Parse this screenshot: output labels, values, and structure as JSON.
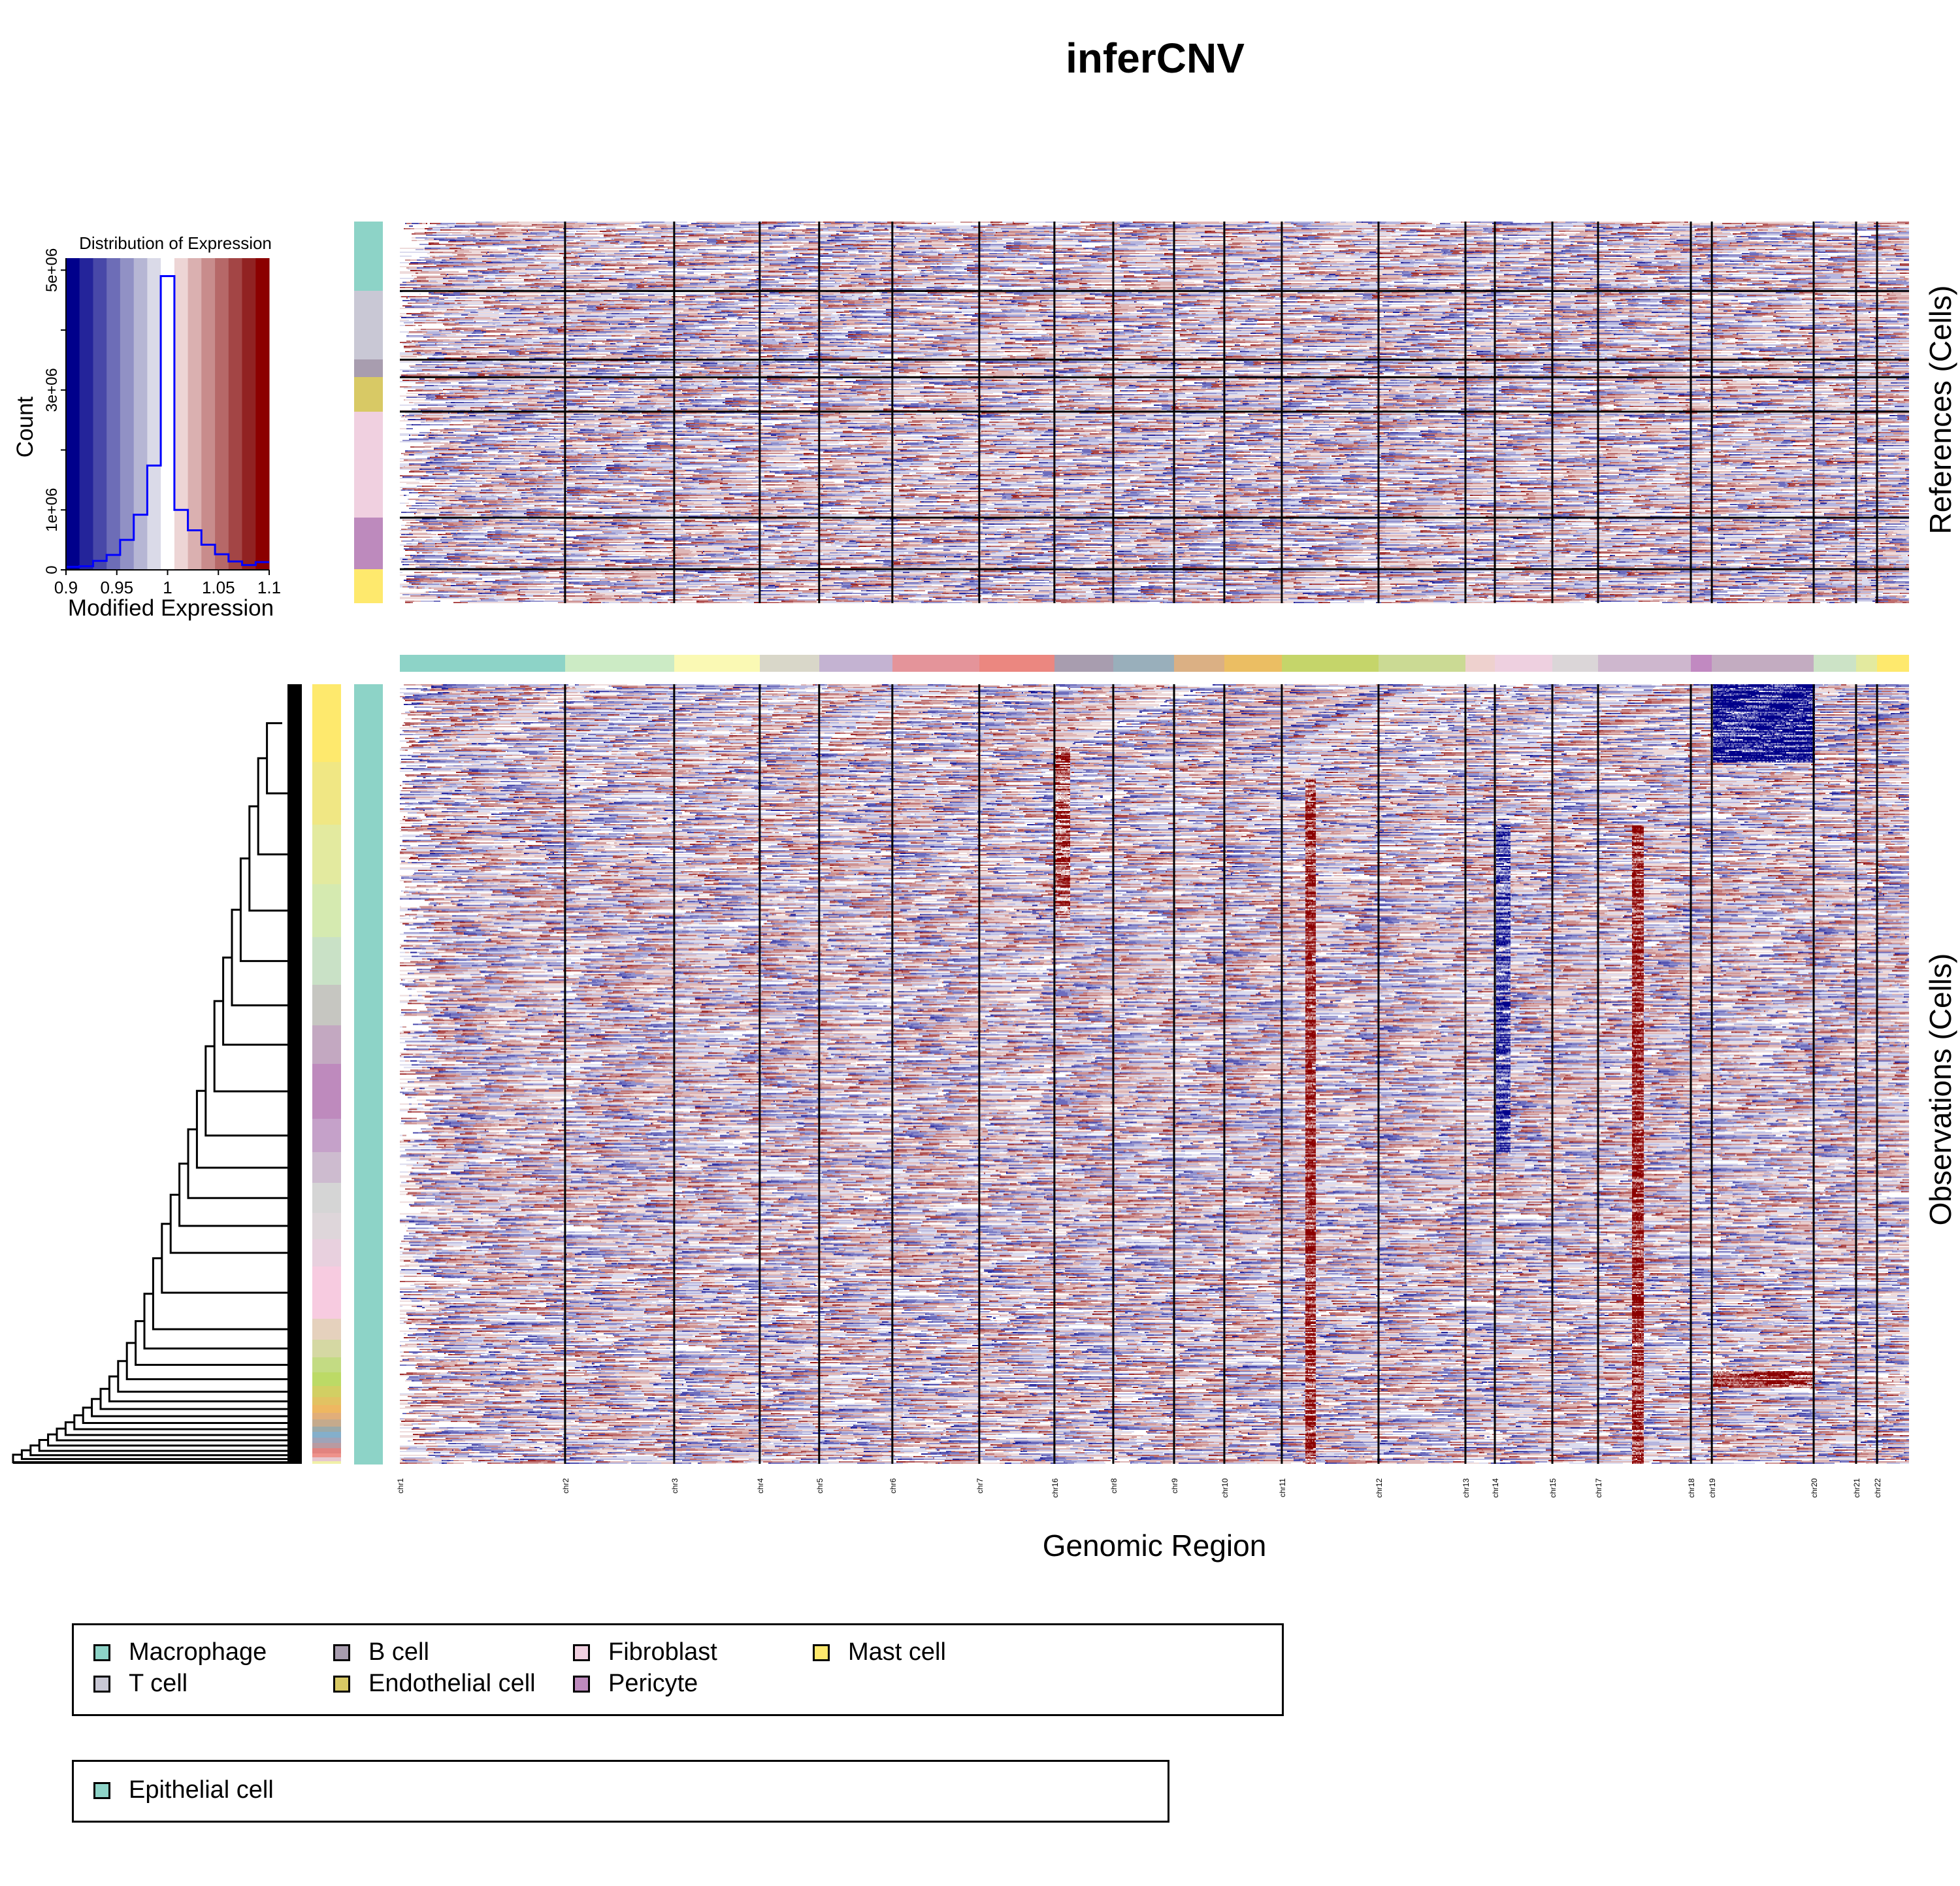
{
  "title": "inferCNV",
  "chart_data": {
    "type": "heatmap",
    "title": "inferCNV",
    "xlabel": "Genomic Region",
    "references_label": "References (Cells)",
    "observations_label": "Observations (Cells)",
    "color_scale": {
      "low": "#00008B",
      "mid": "#FFFFFF",
      "high": "#8B0000",
      "range": [
        0.9,
        1.1
      ]
    },
    "chromosomes": [
      {
        "name": "chr1",
        "frac": 0.1095,
        "color": "#8DD3C7"
      },
      {
        "name": "chr2",
        "frac": 0.0723,
        "color": "#CCEBC5"
      },
      {
        "name": "chr3",
        "frac": 0.0567,
        "color": "#FAF9B4"
      },
      {
        "name": "chr4",
        "frac": 0.0394,
        "color": "#D9D7C9"
      },
      {
        "name": "chr5",
        "frac": 0.0485,
        "color": "#C4B3D2"
      },
      {
        "name": "chr6",
        "frac": 0.0576,
        "color": "#E4949A"
      },
      {
        "name": "chr7",
        "frac": 0.0498,
        "color": "#EB8780"
      },
      {
        "name": "chr16",
        "frac": 0.039,
        "color": "#A89DAF"
      },
      {
        "name": "chr8",
        "frac": 0.0403,
        "color": "#99AFBB"
      },
      {
        "name": "chr9",
        "frac": 0.0333,
        "color": "#DBB084"
      },
      {
        "name": "chr10",
        "frac": 0.0381,
        "color": "#EBBE63"
      },
      {
        "name": "chr11",
        "frac": 0.0641,
        "color": "#C5D56A"
      },
      {
        "name": "chr12",
        "frac": 0.0576,
        "color": "#CBDA94"
      },
      {
        "name": "chr13",
        "frac": 0.0195,
        "color": "#EED1CE"
      },
      {
        "name": "chr14",
        "frac": 0.0381,
        "color": "#EED0E0"
      },
      {
        "name": "chr15",
        "frac": 0.0303,
        "color": "#DBD6D8"
      },
      {
        "name": "chr17",
        "frac": 0.0615,
        "color": "#CEB7CE"
      },
      {
        "name": "chr18",
        "frac": 0.0139,
        "color": "#C189C1"
      },
      {
        "name": "chr19",
        "frac": 0.0675,
        "color": "#C3ACC1"
      },
      {
        "name": "chr20",
        "frac": 0.0281,
        "color": "#CCE3C6"
      },
      {
        "name": "chr21",
        "frac": 0.0139,
        "color": "#E3EA9F"
      },
      {
        "name": "chr22",
        "frac": 0.0212,
        "color": "#FEE96D"
      }
    ],
    "reference_groups": [
      {
        "name": "Macrophage",
        "frac": 0.182,
        "color": "#8DD3C7"
      },
      {
        "name": "T cell",
        "frac": 0.18,
        "color": "#C9C8D5"
      },
      {
        "name": "B cell",
        "frac": 0.046,
        "color": "#A89DAF"
      },
      {
        "name": "Endothelial cell",
        "frac": 0.09,
        "color": "#D8C965"
      },
      {
        "name": "Fibroblast",
        "frac": 0.278,
        "color": "#F0D0E0"
      },
      {
        "name": "Pericyte",
        "frac": 0.135,
        "color": "#BD8ABD"
      },
      {
        "name": "Mast cell",
        "frac": 0.089,
        "color": "#FEE96D"
      }
    ],
    "observation_group": {
      "name": "Epithelial cell",
      "color": "#8DD3C7"
    },
    "observation_subclusters": [
      {
        "frac": 0.081,
        "color": "#FEE96D"
      },
      {
        "frac": 0.065,
        "color": "#F0E784"
      },
      {
        "frac": 0.062,
        "color": "#E3EA9F"
      },
      {
        "frac": 0.055,
        "color": "#D5EAB0"
      },
      {
        "frac": 0.05,
        "color": "#C9E1C6"
      },
      {
        "frac": 0.042,
        "color": "#C6C6C1"
      },
      {
        "frac": 0.04,
        "color": "#C3A8C1"
      },
      {
        "frac": 0.057,
        "color": "#BE8ABD"
      },
      {
        "frac": 0.035,
        "color": "#C5A1C9"
      },
      {
        "frac": 0.032,
        "color": "#CDBBCF"
      },
      {
        "frac": 0.031,
        "color": "#D5D5D5"
      },
      {
        "frac": 0.027,
        "color": "#DED6DA"
      },
      {
        "frac": 0.029,
        "color": "#E8D0DE"
      },
      {
        "frac": 0.054,
        "color": "#F7CBE0"
      },
      {
        "frac": 0.022,
        "color": "#E5D1BD"
      },
      {
        "frac": 0.018,
        "color": "#D5D8A3"
      },
      {
        "frac": 0.016,
        "color": "#C3DB83"
      },
      {
        "frac": 0.014,
        "color": "#BCDA66"
      },
      {
        "frac": 0.012,
        "color": "#D2CF63"
      },
      {
        "frac": 0.008,
        "color": "#E2C262"
      },
      {
        "frac": 0.008,
        "color": "#EEB761"
      },
      {
        "frac": 0.007,
        "color": "#E1AE7A"
      },
      {
        "frac": 0.007,
        "color": "#C5AA8C"
      },
      {
        "frac": 0.006,
        "color": "#9AA9A9"
      },
      {
        "frac": 0.006,
        "color": "#84AFCB"
      },
      {
        "frac": 0.005,
        "color": "#9FA3B8"
      },
      {
        "frac": 0.006,
        "color": "#B99AA1"
      },
      {
        "frac": 0.005,
        "color": "#E2837F"
      },
      {
        "frac": 0.004,
        "color": "#EE928B"
      },
      {
        "frac": 0.004,
        "color": "#E6C7CF"
      },
      {
        "frac": 0.003,
        "color": "#F1F0A8"
      }
    ],
    "histogram": {
      "title": "Distribution of Expression",
      "xlabel": "Modified Expression",
      "ylabel": "Count",
      "xlim": [
        0.9,
        1.1
      ],
      "ylim": [
        0,
        5000000
      ],
      "xticks": [
        "0.9",
        "0.95",
        "1",
        "1.05",
        "1.1"
      ],
      "yticks": [
        "0",
        "1e+06",
        "3e+06",
        "5e+06"
      ],
      "ytick_values": [
        0,
        1000000,
        3000000,
        5000000
      ],
      "ytick_minor_values": [
        2000000,
        4000000
      ],
      "bin_edges": [
        0.9,
        0.9133,
        0.9267,
        0.94,
        0.9533,
        0.9667,
        0.98,
        0.9933,
        1.0067,
        1.02,
        1.0333,
        1.0467,
        1.06,
        1.0733,
        1.0867,
        1.1
      ],
      "counts": [
        50000,
        60000,
        150000,
        250000,
        500000,
        920000,
        1740000,
        4900000,
        1000000,
        660000,
        420000,
        260000,
        140000,
        80000,
        130000
      ],
      "bin_colors": [
        "#00008B",
        "#24249A",
        "#4848A8",
        "#6D6DB7",
        "#9191C5",
        "#B6B6D4",
        "#DADAE8",
        "#FFFFFF",
        "#EDD5D5",
        "#DAB0B0",
        "#C88C8C",
        "#B66868",
        "#A34545",
        "#912222",
        "#8B0000"
      ],
      "line_color": "#0000FF"
    },
    "seed_note": ""
  },
  "legend": {
    "references": [
      {
        "label": "Macrophage",
        "color": "#8DD3C7"
      },
      {
        "label": "T cell",
        "color": "#C9C8D5"
      },
      {
        "label": "B cell",
        "color": "#A89DAF"
      },
      {
        "label": "Endothelial cell",
        "color": "#D8C965"
      },
      {
        "label": "Fibroblast",
        "color": "#F0D0E0"
      },
      {
        "label": "Pericyte",
        "color": "#BD8ABD"
      },
      {
        "label": "Mast cell",
        "color": "#FEE96D"
      }
    ],
    "observations": [
      {
        "label": "Epithelial cell",
        "color": "#8DD3C7"
      }
    ]
  }
}
